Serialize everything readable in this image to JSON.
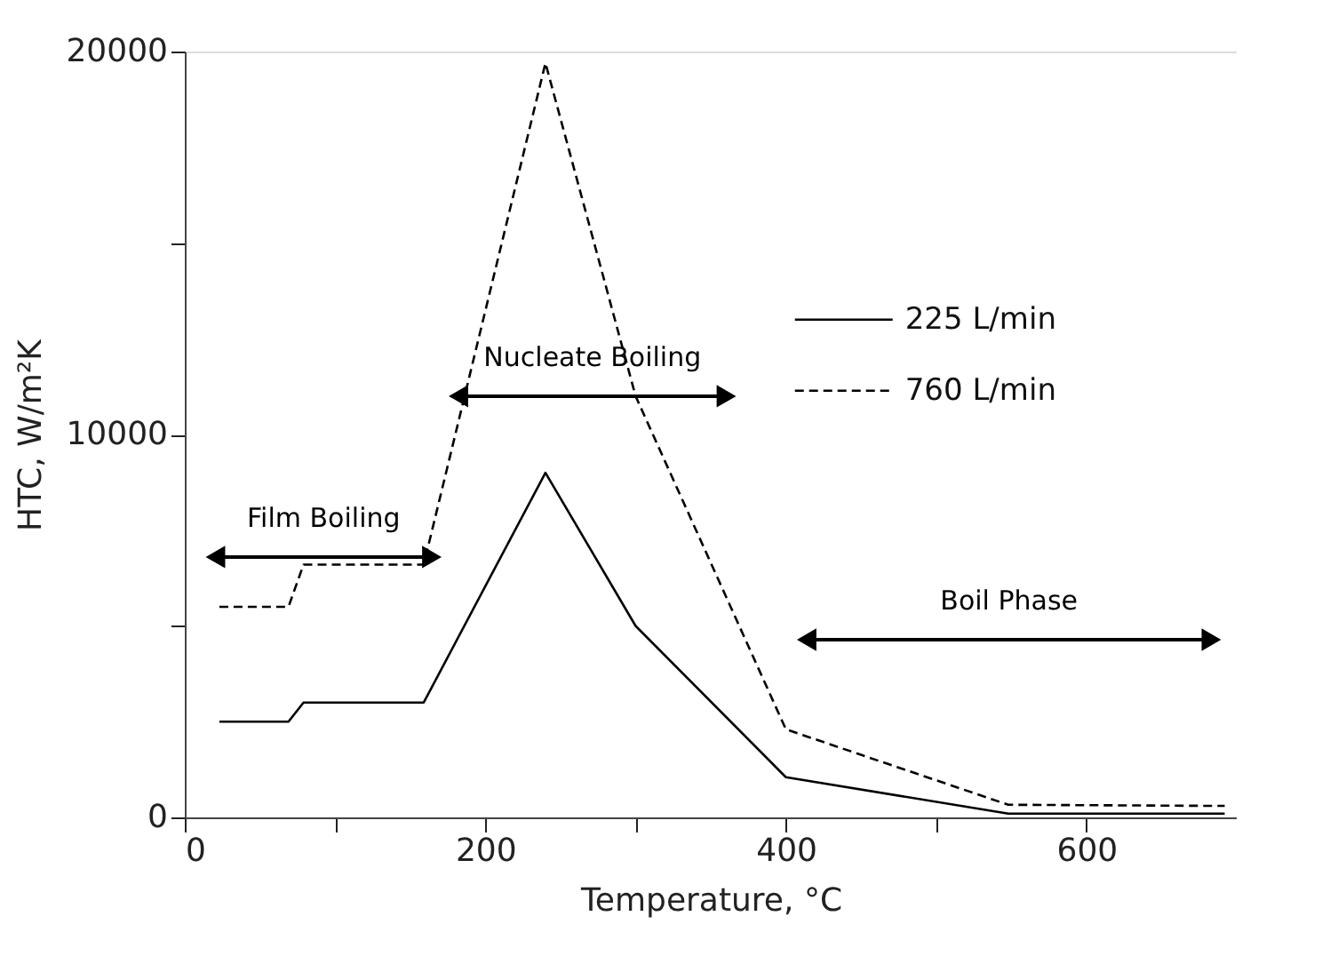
{
  "chart_data": {
    "type": "line",
    "xlabel": "Temperature, °C",
    "ylabel": "HTC, W/m²K",
    "xlim": [
      0,
      700
    ],
    "xticks": [
      0,
      {
        "value": 100,
        "label": null
      },
      200,
      {
        "value": 300,
        "label": null
      },
      400,
      {
        "value": 500,
        "label": null
      },
      600
    ],
    "ylim": [
      0,
      20000
    ],
    "yticks": [
      0,
      {
        "value": 5000,
        "label": null
      },
      10000,
      {
        "value": 15000,
        "label": null
      },
      20000
    ],
    "legend": "top right",
    "series": [
      {
        "name": "225 L/min",
        "color": "#000000",
        "line_style": "solid",
        "x": [
          23,
          69,
          79,
          159,
          240,
          300,
          400,
          548,
          692
        ],
        "values": [
          2500,
          2500,
          3000,
          3000,
          9000,
          5000,
          1050,
          100,
          100
        ]
      },
      {
        "name": "760 L/min",
        "color": "#000000",
        "line_style": "dashed",
        "x": [
          23,
          69,
          79,
          159,
          240,
          300,
          400,
          548,
          692
        ],
        "values": [
          5500,
          5500,
          6600,
          6600,
          19700,
          11000,
          2300,
          330,
          300
        ]
      }
    ],
    "annotations": [
      "Film Boiling",
      "Nucleate  Boiling",
      "Boil Phase"
    ]
  }
}
